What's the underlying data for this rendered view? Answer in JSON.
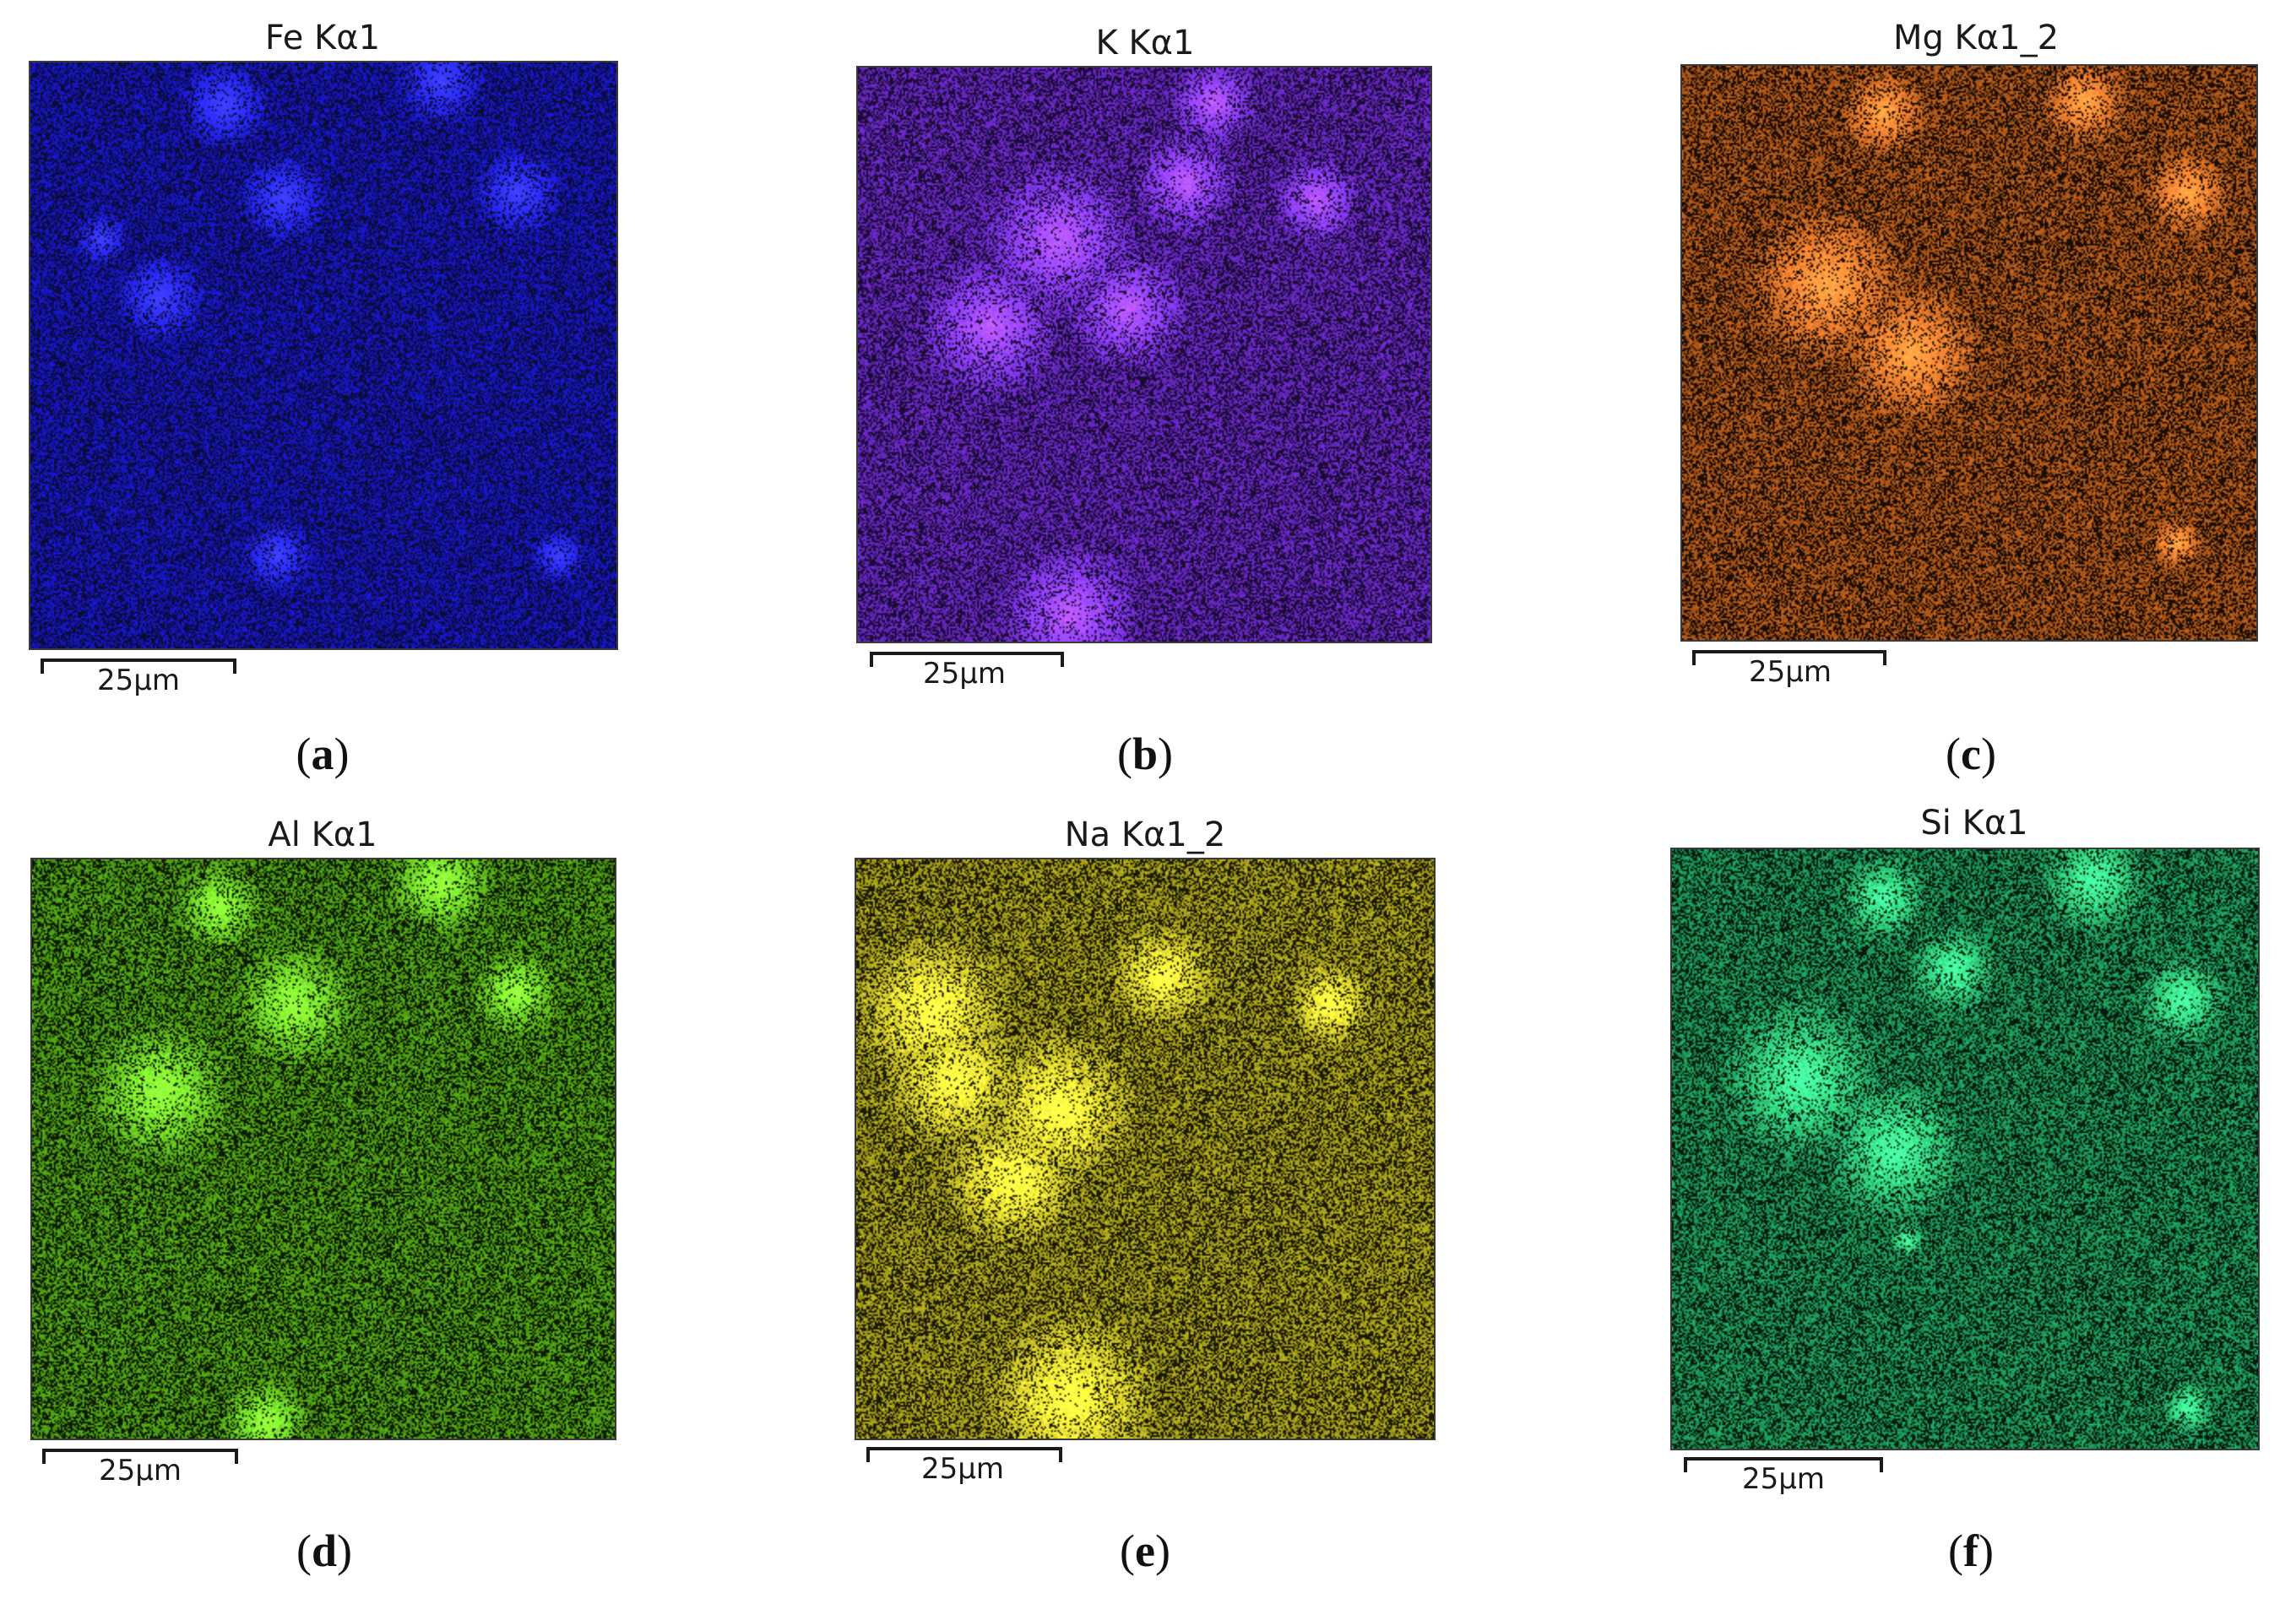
{
  "figure": {
    "panels": [
      {
        "title": "Fe Kα1",
        "scale_label": "25μm",
        "caption_letter": "a",
        "color": "#1a1ae6",
        "background": "#0b0b3a"
      },
      {
        "title": "K Kα1",
        "scale_label": "25μm",
        "caption_letter": "b",
        "color": "#7a2ee6",
        "background": "#1a0b33"
      },
      {
        "title": "Mg Kα1_2",
        "scale_label": "25μm",
        "caption_letter": "c",
        "color": "#d2691e",
        "background": "#1a0d05"
      },
      {
        "title": "Al Kα1",
        "scale_label": "25μm",
        "caption_letter": "d",
        "color": "#5fbf18",
        "background": "#0c1a04"
      },
      {
        "title": "Na Kα1_2",
        "scale_label": "25μm",
        "caption_letter": "e",
        "color": "#c8c020",
        "background": "#1a1904"
      },
      {
        "title": "Si Kα1",
        "scale_label": "25μm",
        "caption_letter": "f",
        "color": "#22b86a",
        "background": "#041a0e"
      }
    ]
  }
}
